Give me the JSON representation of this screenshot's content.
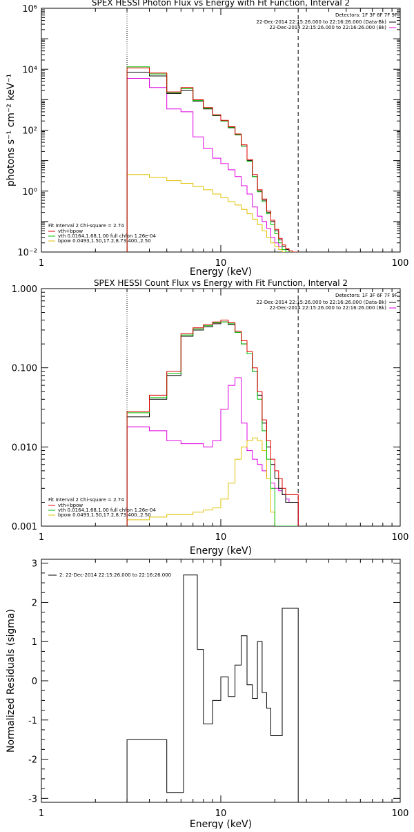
{
  "colors": {
    "observed": "#000000",
    "total": "#e00000",
    "vth": "#00c000",
    "bpow": "#e0c000",
    "background": "#e000e0"
  },
  "chart_data": [
    {
      "type": "line",
      "title": "SPEX HESSI Photon Flux vs Energy with Fit Function, Interval 2",
      "xlabel": "Energy (keV)",
      "ylabel": "photons s⁻¹ cm⁻² keV⁻¹",
      "xscale": "log",
      "yscale": "log",
      "xlim": [
        1,
        100
      ],
      "ylim": [
        0.01,
        1000000
      ],
      "xticks": [
        1,
        10,
        100
      ],
      "xtick_labels": [
        "1",
        "10",
        "100"
      ],
      "yticks": [
        0.01,
        1,
        100,
        10000,
        1000000
      ],
      "ytick_labels": [
        "10⁻²",
        "10⁰",
        "10²",
        "10⁴",
        "10⁶"
      ],
      "vlines": [
        {
          "x": 3,
          "style": "dotted"
        },
        {
          "x": 27,
          "style": "dashed"
        }
      ],
      "detectors_text": "Detectors: 1F 3F 6F 7F 9F",
      "legend_top": [
        {
          "text": "22-Dec-2014 22:15:26.000 to 22:16:26.000 (Data-Bk)",
          "color": "observed"
        },
        {
          "text": "22-Dec-2014 22:15:26.000 to 22:16:26.000 (Bk)",
          "color": "background"
        }
      ],
      "legend_bottom_title": "Fit Interval 2   Chi-square = 2.74",
      "legend_bottom": [
        {
          "text": "vth+bpow",
          "color": "total"
        },
        {
          "text": "vth 0.0164,1.68,1.00  full chfon 1.26e-04",
          "color": "vth"
        },
        {
          "text": "bpow 0.0493,1.50,17.2,8.73,400.,2.50",
          "color": "bpow"
        }
      ],
      "bin_edges": [
        3,
        4,
        5,
        6,
        7,
        8,
        9,
        10,
        11,
        12,
        13,
        14,
        15,
        16,
        17,
        18,
        19,
        20,
        21,
        22,
        23,
        24,
        25,
        26,
        27
      ],
      "series": [
        {
          "color": "observed",
          "values": [
            8000,
            6000,
            1600,
            2000,
            900,
            500,
            300,
            200,
            120,
            70,
            30,
            10,
            3,
            1,
            0.5,
            0.2,
            0.1,
            0.05,
            0.025,
            0.015,
            0.012,
            0.01,
            0.01,
            0.01
          ]
        },
        {
          "color": "total",
          "values": [
            11000,
            7500,
            1800,
            2500,
            1000,
            550,
            320,
            210,
            130,
            75,
            33,
            11,
            3.5,
            1.1,
            0.55,
            0.22,
            0.11,
            0.055,
            0.028,
            0.017,
            0.013,
            0.011,
            0.01,
            0.01
          ]
        },
        {
          "color": "vth",
          "values": [
            12000,
            7000,
            1700,
            2300,
            950,
            520,
            310,
            200,
            125,
            72,
            30,
            9.5,
            3,
            0.95,
            0.45,
            0.18,
            0.08,
            0.04,
            0.02,
            0.012,
            0.01,
            0.01,
            0.01,
            0.01
          ]
        },
        {
          "color": "background",
          "values": [
            5000,
            2500,
            500,
            400,
            60,
            25,
            12,
            8,
            5,
            3,
            1.5,
            0.8,
            0.3,
            0.15,
            0.1,
            0.06,
            0.03,
            0.02,
            0.015,
            0.012,
            0.01,
            0.01,
            0.01,
            0.01
          ]
        },
        {
          "color": "bpow",
          "values": [
            3.5,
            2.8,
            2.2,
            1.8,
            1.4,
            1.1,
            0.8,
            0.6,
            0.45,
            0.35,
            0.25,
            0.18,
            0.12,
            0.08,
            0.05,
            0.03,
            0.02,
            0.015,
            0.012,
            0.01,
            0.01,
            0.01,
            0.01,
            0.01
          ]
        }
      ]
    },
    {
      "type": "line",
      "title": "SPEX HESSI Count Flux vs Energy with Fit Function, Interval 2",
      "xlabel": "Energy (keV)",
      "ylabel": "",
      "xscale": "log",
      "yscale": "log",
      "xlim": [
        1,
        100
      ],
      "ylim": [
        0.001,
        1
      ],
      "xticks": [
        1,
        10,
        100
      ],
      "xtick_labels": [
        "1",
        "10",
        "100"
      ],
      "yticks": [
        0.001,
        0.01,
        0.1,
        1
      ],
      "ytick_labels": [
        "0.001",
        "0.010",
        "0.100",
        "1.000"
      ],
      "vlines": [
        {
          "x": 3,
          "style": "dotted"
        },
        {
          "x": 27,
          "style": "dashed"
        }
      ],
      "detectors_text": "Detectors: 1F 3F 6F 7F 9F",
      "legend_top": [
        {
          "text": "22-Dec-2014 22:15:26.000 to 22:16:26.000 (Data-Bk)",
          "color": "observed"
        },
        {
          "text": "22-Dec-2014 22:15:26.000 to 22:16:26.000 (Bk)",
          "color": "background"
        }
      ],
      "legend_bottom_title": "Fit Interval 2   Chi-square = 2.74",
      "legend_bottom": [
        {
          "text": "vth+bpow",
          "color": "total"
        },
        {
          "text": "vth 0.0164,1.68,1.00  full chfon 1.26e-04",
          "color": "vth"
        },
        {
          "text": "bpow 0.0493,1.50,17.2,8.73,400.,2.50",
          "color": "bpow"
        }
      ],
      "bin_edges": [
        3,
        4,
        5,
        6,
        7,
        8,
        9,
        10,
        11,
        12,
        13,
        14,
        15,
        16,
        17,
        18,
        19,
        20,
        21,
        22,
        23,
        24,
        25,
        26,
        27
      ],
      "series": [
        {
          "color": "observed",
          "values": [
            0.024,
            0.04,
            0.08,
            0.25,
            0.3,
            0.33,
            0.36,
            0.38,
            0.35,
            0.28,
            0.2,
            0.15,
            0.09,
            0.045,
            0.02,
            0.01,
            0.006,
            0.004,
            0.003,
            0.0025,
            0.002,
            0.002,
            0.002,
            0.002
          ]
        },
        {
          "color": "total",
          "values": [
            0.028,
            0.045,
            0.09,
            0.27,
            0.32,
            0.35,
            0.38,
            0.4,
            0.37,
            0.29,
            0.22,
            0.16,
            0.1,
            0.05,
            0.022,
            0.012,
            0.007,
            0.005,
            0.004,
            0.003,
            0.0025,
            0.0025,
            0.0025,
            0.0025
          ]
        },
        {
          "color": "vth",
          "values": [
            0.027,
            0.042,
            0.085,
            0.26,
            0.31,
            0.34,
            0.37,
            0.38,
            0.36,
            0.28,
            0.2,
            0.15,
            0.09,
            0.04,
            0.016,
            0.007,
            0.003,
            0.001,
            0.001,
            0.001,
            0.001,
            0.001,
            0.001,
            0.001
          ]
        },
        {
          "color": "background",
          "values": [
            0.018,
            0.016,
            0.012,
            0.011,
            0.011,
            0.01,
            0.012,
            0.03,
            0.06,
            0.075,
            0.02,
            0.009,
            0.007,
            0.006,
            0.005,
            0.004,
            0.0035,
            0.003,
            0.0028,
            0.0025,
            0.0022,
            0.002,
            0.002,
            0.002
          ]
        },
        {
          "color": "bpow",
          "values": [
            0.0012,
            0.0013,
            0.0014,
            0.0014,
            0.0015,
            0.0016,
            0.0017,
            0.0022,
            0.0035,
            0.007,
            0.01,
            0.012,
            0.013,
            0.012,
            0.009,
            0.004,
            0.0015,
            0.001,
            0.001,
            0.001,
            0.001,
            0.001,
            0.001,
            0.001
          ]
        }
      ]
    },
    {
      "type": "line",
      "title": "",
      "xlabel": "Energy (keV)",
      "ylabel": "Normalized Residuals (sigma)",
      "xscale": "log",
      "yscale": "linear",
      "xlim": [
        1,
        100
      ],
      "ylim": [
        -3.1,
        3.1
      ],
      "xticks": [
        1,
        10,
        100
      ],
      "xtick_labels": [
        "1",
        "10",
        "100"
      ],
      "yticks": [
        -3,
        -2,
        -1,
        0,
        1,
        2,
        3
      ],
      "ytick_labels": [
        "-3",
        "-2",
        "-1",
        "0",
        "1",
        "2",
        "3"
      ],
      "legend_top": [
        {
          "text": "2: 22-Dec-2014 22:15:26.000 to 22:16:26.000",
          "color": "observed"
        }
      ],
      "bin_edges": [
        3,
        5,
        6.2,
        7.4,
        8,
        9,
        10,
        11,
        12,
        13,
        14,
        15,
        16,
        17,
        18,
        19,
        20,
        22,
        24,
        26,
        27
      ],
      "series": [
        {
          "color": "observed",
          "values": [
            -1.5,
            -2.85,
            2.7,
            0.8,
            -1.1,
            -0.5,
            0.1,
            -0.4,
            0.4,
            1.15,
            -0.1,
            -0.45,
            1.0,
            -0.3,
            -0.7,
            -1.4,
            -1.4,
            1.85,
            1.85,
            1.85
          ]
        }
      ]
    }
  ]
}
